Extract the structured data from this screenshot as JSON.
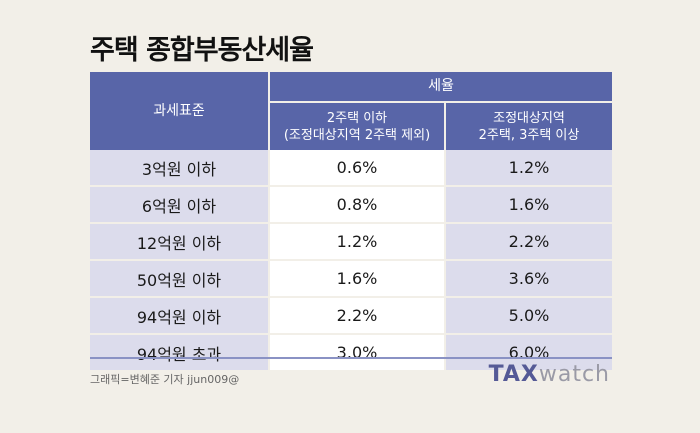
{
  "title": "주택 종합부동산세율",
  "table": {
    "header": {
      "col0": "과세표준",
      "group": "세율",
      "col1": [
        "2주택 이하",
        "(조정대상지역 2주택 제외)"
      ],
      "col2": [
        "조정대상지역",
        "2주택, 3주택 이상"
      ]
    },
    "rows": [
      [
        "3억원 이하",
        "0.6%",
        "1.2%"
      ],
      [
        "6억원 이하",
        "0.8%",
        "1.6%"
      ],
      [
        "12억원 이하",
        "1.2%",
        "2.2%"
      ],
      [
        "50억원 이하",
        "1.6%",
        "3.6%"
      ],
      [
        "94억원 이하",
        "2.2%",
        "5.0%"
      ],
      [
        "94억원 초과",
        "3.0%",
        "6.0%"
      ]
    ]
  },
  "credit": "그래픽=변혜준 기자 jjun009@",
  "logo": {
    "part1": "TAX",
    "part2": "watch"
  }
}
